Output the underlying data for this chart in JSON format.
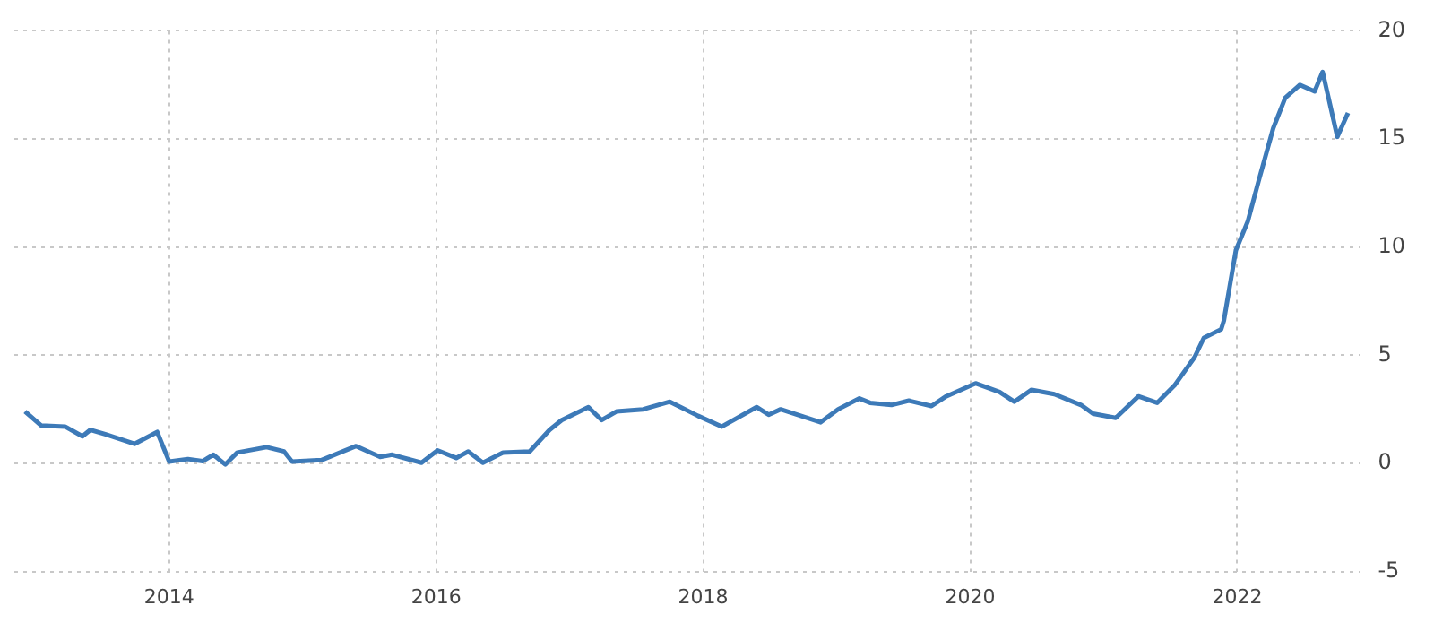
{
  "chart_data": {
    "type": "line",
    "x": [
      2012.92,
      2013.04,
      2013.22,
      2013.35,
      2013.41,
      2013.52,
      2013.74,
      2013.91,
      2014.0,
      2014.14,
      2014.25,
      2014.33,
      2014.42,
      2014.51,
      2014.73,
      2014.86,
      2014.92,
      2015.14,
      2015.4,
      2015.58,
      2015.67,
      2015.89,
      2016.01,
      2016.15,
      2016.24,
      2016.35,
      2016.5,
      2016.7,
      2016.85,
      2016.94,
      2017.14,
      2017.24,
      2017.35,
      2017.55,
      2017.75,
      2017.96,
      2018.14,
      2018.4,
      2018.49,
      2018.58,
      2018.88,
      2019.01,
      2019.17,
      2019.25,
      2019.41,
      2019.54,
      2019.71,
      2019.82,
      2020.04,
      2020.22,
      2020.33,
      2020.46,
      2020.63,
      2020.83,
      2020.92,
      2021.09,
      2021.26,
      2021.4,
      2021.53,
      2021.68,
      2021.75,
      2021.88,
      2021.9,
      2021.99,
      2022.08,
      2022.16,
      2022.27,
      2022.36,
      2022.47,
      2022.58,
      2022.64,
      2022.75,
      2022.83
    ],
    "series": [
      {
        "color": "#3d7ab8",
        "values": [
          2.4,
          1.75,
          1.7,
          1.25,
          1.55,
          1.35,
          0.9,
          1.45,
          0.08,
          0.2,
          0.1,
          0.4,
          -0.05,
          0.5,
          0.75,
          0.55,
          0.08,
          0.15,
          0.8,
          0.3,
          0.4,
          0.03,
          0.6,
          0.25,
          0.55,
          0.03,
          0.5,
          0.55,
          1.55,
          2.0,
          2.6,
          2.0,
          2.4,
          2.5,
          2.85,
          2.2,
          1.7,
          2.6,
          2.25,
          2.5,
          1.9,
          2.5,
          3.0,
          2.8,
          2.7,
          2.9,
          2.65,
          3.1,
          3.7,
          3.3,
          2.85,
          3.4,
          3.2,
          2.7,
          2.3,
          2.1,
          3.1,
          2.8,
          3.6,
          4.9,
          5.8,
          6.2,
          6.6,
          9.85,
          11.2,
          13.05,
          15.5,
          16.9,
          17.5,
          17.2,
          18.1,
          15.1,
          16.2
        ]
      }
    ],
    "xlim": [
      2012.84,
      2022.92
    ],
    "xticks": [
      2014,
      2016,
      2018,
      2020,
      2022
    ],
    "ylim": [
      -5,
      20
    ],
    "yticks": [
      -5,
      0,
      5,
      10,
      15,
      20
    ],
    "grid": true,
    "legend": false,
    "marker": "none",
    "line_style": "solid"
  }
}
